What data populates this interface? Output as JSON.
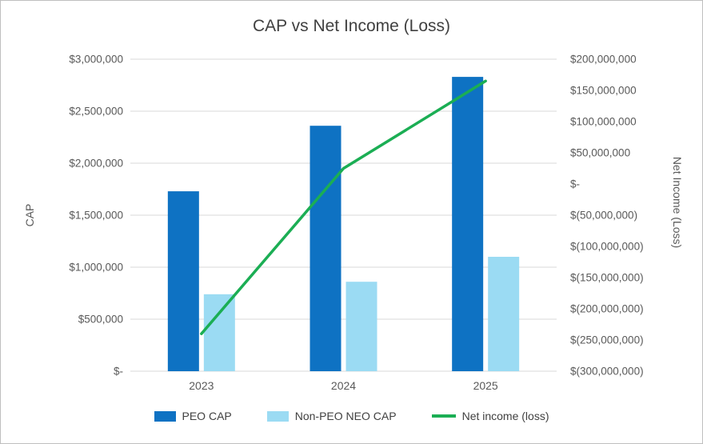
{
  "window": {
    "background": "#FFFFFF",
    "border_color": "#BFBFBF"
  },
  "chart_data": {
    "type": "combo-bar-line",
    "title": "CAP vs Net Income (Loss)",
    "categories": [
      "2023",
      "2024",
      "2025"
    ],
    "bar_series": [
      {
        "name": "PEO CAP",
        "color": "#0E72C3",
        "axis": "left",
        "values": [
          1730000,
          2360000,
          2830000
        ]
      },
      {
        "name": "Non-PEO NEO CAP",
        "color": "#9BDBF3",
        "axis": "left",
        "values": [
          740000,
          860000,
          1100000
        ]
      }
    ],
    "line_series": [
      {
        "name": "Net income (loss)",
        "color": "#1BAE54",
        "axis": "right",
        "values": [
          -240000000,
          25000000,
          165000000
        ]
      }
    ],
    "left_axis": {
      "label": "CAP",
      "min": 0,
      "max": 3000000,
      "step": 500000,
      "tick_labels": [
        "$-",
        "$500,000",
        "$1,000,000",
        "$1,500,000",
        "$2,000,000",
        "$2,500,000",
        "$3,000,000"
      ]
    },
    "right_axis": {
      "label": "Net Income (Loss)",
      "min": -300000000,
      "max": 200000000,
      "step": 50000000,
      "tick_labels": [
        "$(300,000,000)",
        "$(250,000,000)",
        "$(200,000,000)",
        "$(150,000,000)",
        "$(100,000,000)",
        "$(50,000,000)",
        "$-",
        "$50,000,000",
        "$100,000,000",
        "$150,000,000",
        "$200,000,000"
      ]
    },
    "legend": {
      "position": "bottom",
      "items": [
        "PEO CAP",
        "Non-PEO NEO CAP",
        "Net income (loss)"
      ]
    },
    "grid": true,
    "gridline_color": "#D9D9D9",
    "text_color": "#595959",
    "title_color": "#404040"
  }
}
